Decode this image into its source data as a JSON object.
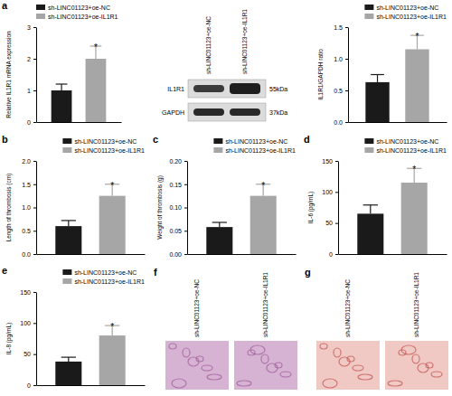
{
  "chart_data": [
    {
      "type": "bar",
      "title": "a",
      "y_label": "Relative IL1R1 mRNA expression",
      "categories": [
        null
      ],
      "series": [
        {
          "name": "sh-LINC01123+oe-NC",
          "color": "#1a1a1a",
          "values": [
            1.0
          ],
          "errors": [
            0.2
          ]
        },
        {
          "name": "sh-LINC01123+oe-IL1R1",
          "color": "#a6a6a6",
          "values": [
            2.0
          ],
          "errors": [
            0.4
          ],
          "annotation": "*"
        }
      ],
      "ylim": [
        0,
        3
      ],
      "yticks": [
        0,
        1,
        2,
        3
      ],
      "legend": "upper left"
    },
    {
      "type": "bar",
      "y_label": "IL1R1/GAPDH ratio",
      "categories": [
        null
      ],
      "series": [
        {
          "name": "sh-LINC01123+oe-NC",
          "color": "#1a1a1a",
          "values": [
            0.63
          ],
          "errors": [
            0.12
          ]
        },
        {
          "name": "sh-LINC01123+oe-IL1R1",
          "color": "#a6a6a6",
          "values": [
            1.15
          ],
          "errors": [
            0.22
          ],
          "annotation": "*"
        }
      ],
      "ylim": [
        0,
        1.5
      ],
      "yticks": [
        {
          "value": 0,
          "label": "0.0"
        },
        0.5,
        {
          "value": 1,
          "label": "1.0"
        },
        1.5
      ],
      "legend": "upper right"
    },
    {
      "type": "bar",
      "title": "b",
      "y_label": "Length of thrombosis (cm)",
      "categories": [
        null
      ],
      "series": [
        {
          "name": "sh-LINC01123+oe-NC",
          "color": "#1a1a1a",
          "values": [
            0.6
          ],
          "errors": [
            0.12
          ]
        },
        {
          "name": "sh-LINC01123+oe-IL1R1",
          "color": "#a6a6a6",
          "values": [
            1.25
          ],
          "errors": [
            0.25
          ],
          "annotation": "*"
        }
      ],
      "ylim": [
        0,
        2
      ],
      "yticks": [
        {
          "value": 0,
          "label": "0.0"
        },
        0.5,
        {
          "value": 1,
          "label": "1.0"
        },
        1.5,
        {
          "value": 2,
          "label": "2.0"
        }
      ],
      "legend": "upper right"
    },
    {
      "type": "bar",
      "title": "c",
      "y_label": "Weight of thrombosis (g)",
      "categories": [
        null
      ],
      "series": [
        {
          "name": "sh-LINC01123+oe-NC",
          "color": "#1a1a1a",
          "values": [
            0.058
          ],
          "errors": [
            0.01
          ]
        },
        {
          "name": "sh-LINC01123+oe-IL1R1",
          "color": "#a6a6a6",
          "values": [
            0.125
          ],
          "errors": [
            0.025
          ],
          "annotation": "*"
        }
      ],
      "ylim": [
        0,
        0.2
      ],
      "yticks": [
        {
          "value": 0,
          "label": "0.00"
        },
        0.05,
        {
          "value": 0.1,
          "label": "0.10"
        },
        0.15,
        {
          "value": 0.2,
          "label": "0.20"
        }
      ],
      "legend": "upper right"
    },
    {
      "type": "bar",
      "title": "d",
      "y_label": "IL-6 (pg/mL)",
      "categories": [
        null
      ],
      "series": [
        {
          "name": "sh-LINC01123+oe-NC",
          "color": "#1a1a1a",
          "values": [
            65
          ],
          "errors": [
            14
          ]
        },
        {
          "name": "sh-LINC01123+oe-IL1R1",
          "color": "#a6a6a6",
          "values": [
            115
          ],
          "errors": [
            23
          ],
          "annotation": "*"
        }
      ],
      "ylim": [
        0,
        150
      ],
      "yticks": [
        0,
        50,
        100,
        150
      ],
      "legend": "upper right"
    },
    {
      "type": "bar",
      "title": "e",
      "y_label": "IL-8 (pg/mL)",
      "categories": [
        null
      ],
      "series": [
        {
          "name": "sh-LINC01123+oe-NC",
          "color": "#1a1a1a",
          "values": [
            38
          ],
          "errors": [
            7
          ]
        },
        {
          "name": "sh-LINC01123+oe-IL1R1",
          "color": "#a6a6a6",
          "values": [
            80
          ],
          "errors": [
            16
          ],
          "annotation": "*"
        }
      ],
      "ylim": [
        0,
        150
      ],
      "yticks": [
        0,
        50,
        100,
        150
      ],
      "legend": "upper right"
    }
  ],
  "blot": {
    "lanes": [
      "sh-LINC01123+oe-NC",
      "sh-LINC01123+oe-IL1R1"
    ],
    "bands": [
      {
        "label": "IL1R1",
        "size": "55kDa"
      },
      {
        "label": "GAPDH",
        "size": "37kDa"
      }
    ]
  },
  "images": [
    {
      "title": "f",
      "lanes": [
        "sh-LINC01123+oe-NC",
        "sh-LINC01123+oe-IL1R1"
      ]
    },
    {
      "title": "g",
      "lanes": [
        "sh-LINC01123+oe-NC",
        "sh-LINC01123+oe-IL1R1"
      ]
    }
  ]
}
